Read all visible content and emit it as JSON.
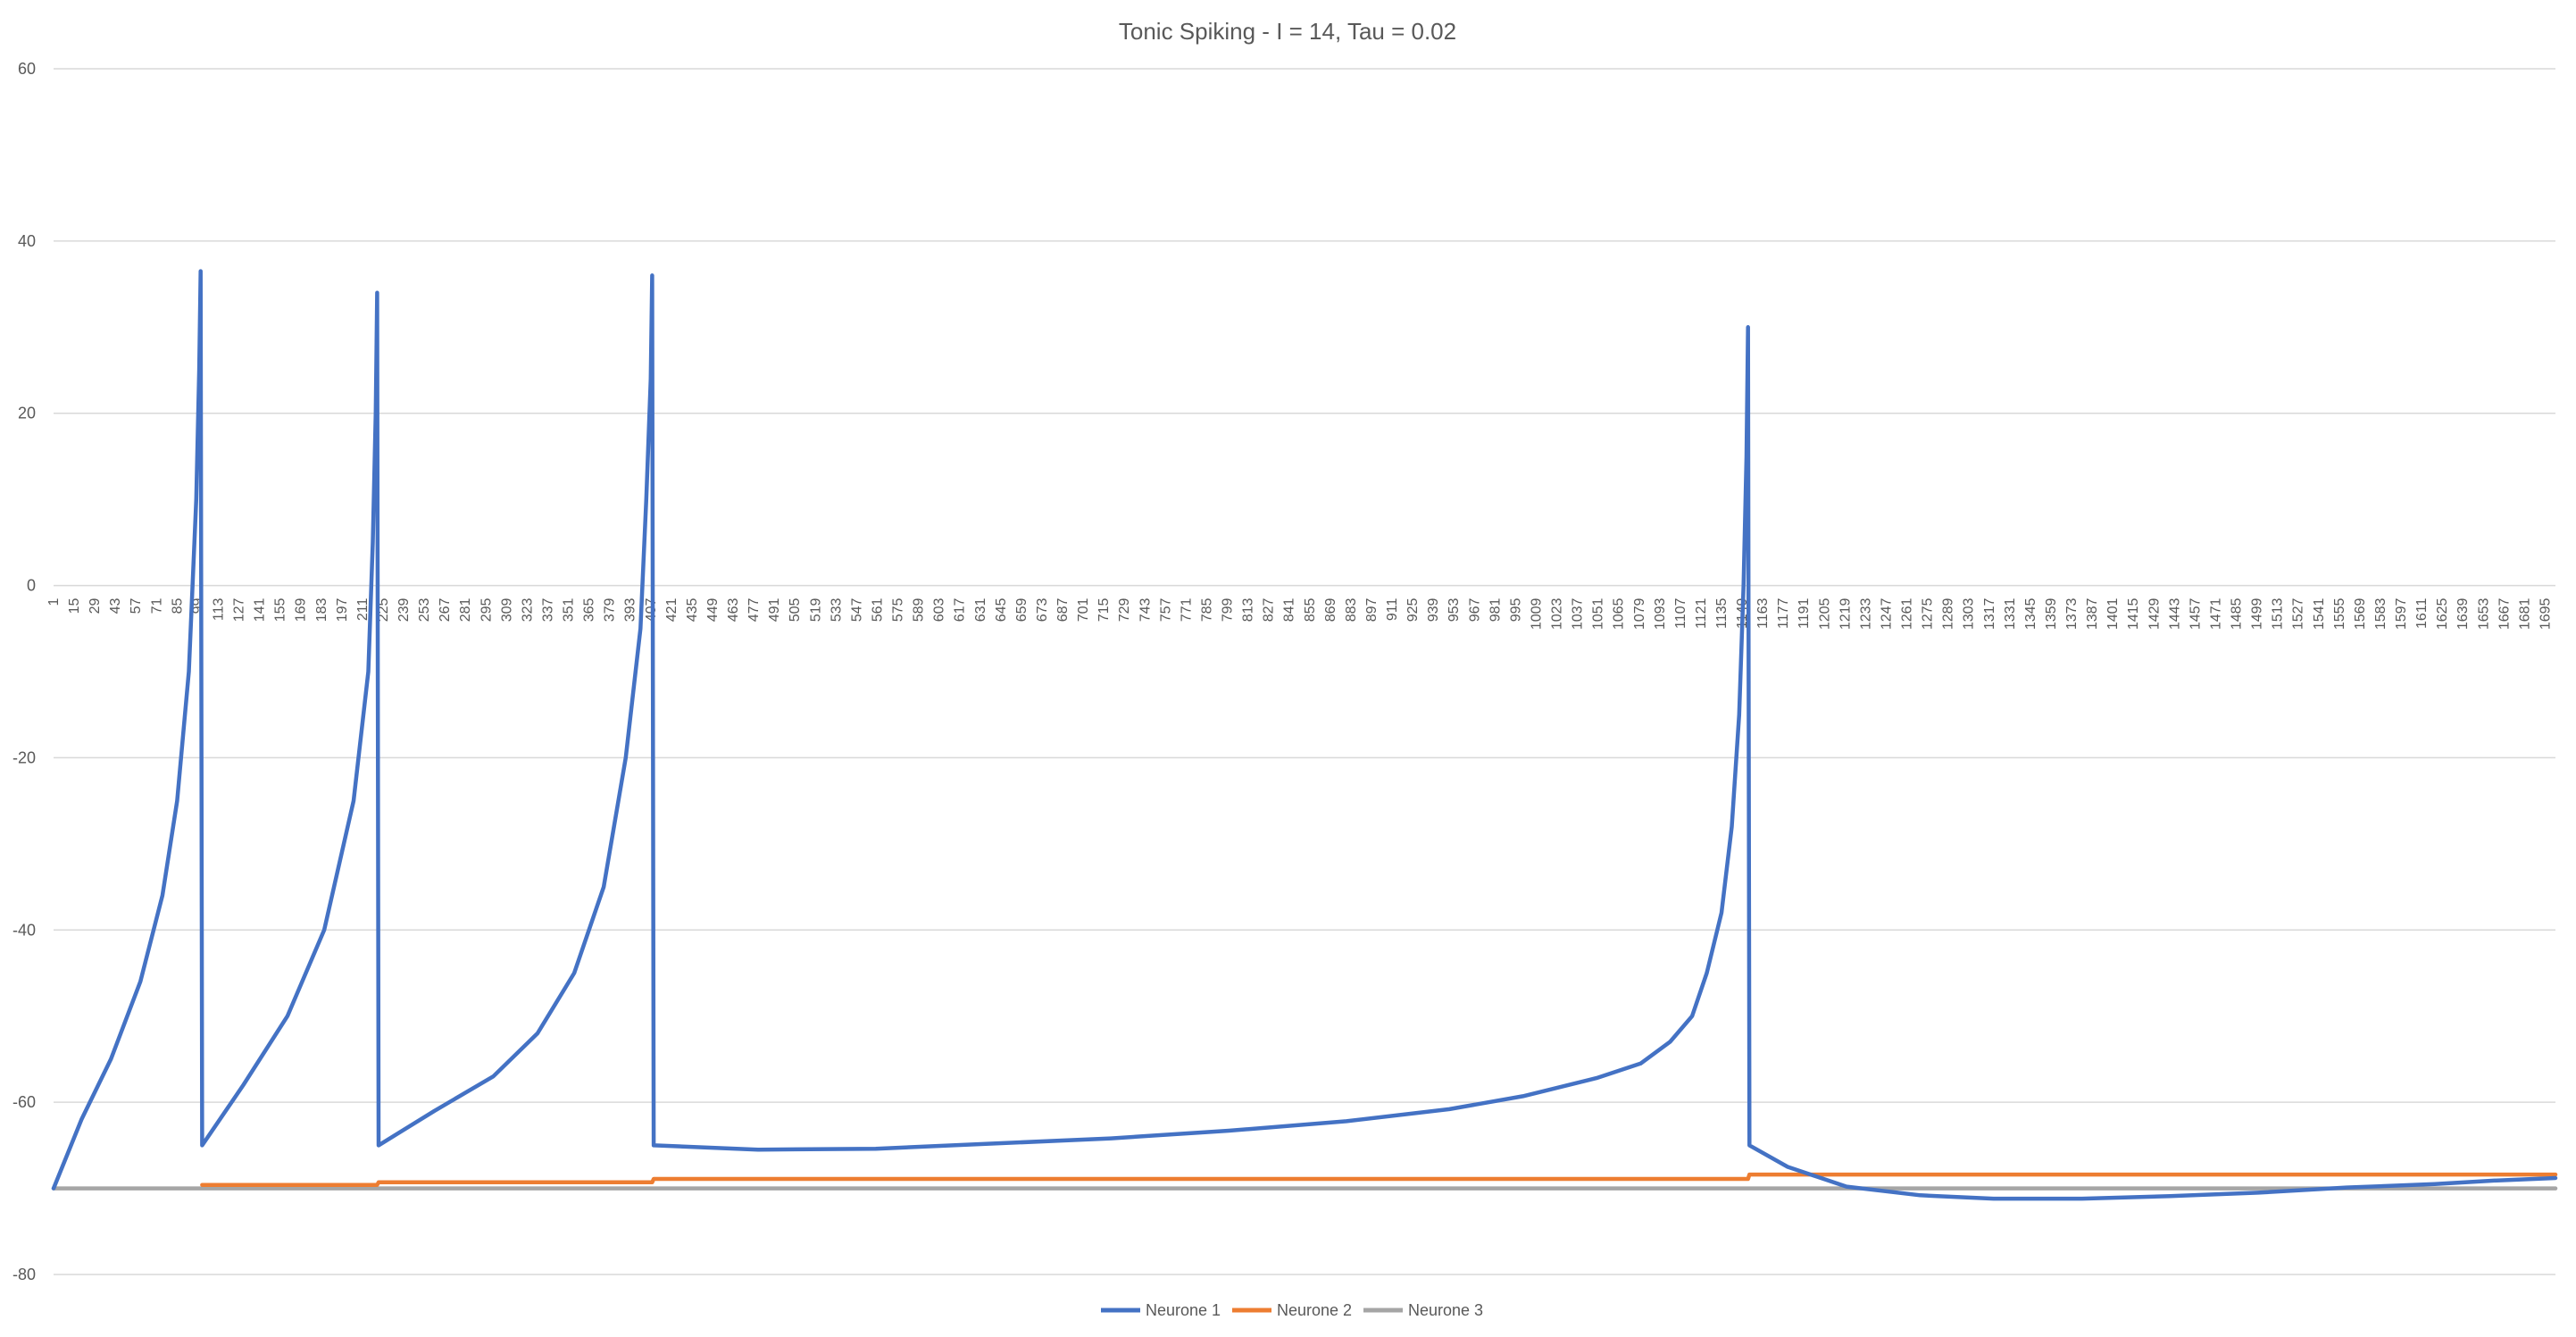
{
  "chart_data": {
    "type": "line",
    "title": "Tonic Spiking - I = 14, Tau = 0.02",
    "xlabel": "",
    "ylabel": "",
    "ylim": [
      -80,
      60
    ],
    "yticks": [
      60,
      40,
      20,
      0,
      -20,
      -40,
      -60,
      -80
    ],
    "xlim": [
      1,
      1702
    ],
    "x_tick_start": 1,
    "x_tick_step": 14,
    "grid": true,
    "legend_position": "bottom",
    "series": [
      {
        "name": "Neurone 1",
        "color": "#4472C4",
        "points": [
          [
            1,
            -70
          ],
          [
            20,
            -62
          ],
          [
            40,
            -55
          ],
          [
            60,
            -46
          ],
          [
            75,
            -36
          ],
          [
            85,
            -25
          ],
          [
            93,
            -10
          ],
          [
            98,
            10
          ],
          [
            100,
            25
          ],
          [
            101,
            36.5
          ],
          [
            102,
            -65
          ],
          [
            130,
            -58
          ],
          [
            160,
            -50
          ],
          [
            185,
            -40
          ],
          [
            205,
            -25
          ],
          [
            215,
            -10
          ],
          [
            218,
            5
          ],
          [
            220,
            20
          ],
          [
            221,
            34
          ],
          [
            222,
            -65
          ],
          [
            260,
            -61
          ],
          [
            300,
            -57
          ],
          [
            330,
            -52
          ],
          [
            355,
            -45
          ],
          [
            375,
            -35
          ],
          [
            390,
            -20
          ],
          [
            400,
            -5
          ],
          [
            404,
            10
          ],
          [
            407,
            24
          ],
          [
            408,
            36
          ],
          [
            409,
            -65
          ],
          [
            480,
            -65.5
          ],
          [
            560,
            -65.4
          ],
          [
            640,
            -64.8
          ],
          [
            720,
            -64.2
          ],
          [
            800,
            -63.3
          ],
          [
            880,
            -62.2
          ],
          [
            950,
            -60.8
          ],
          [
            1000,
            -59.3
          ],
          [
            1050,
            -57.2
          ],
          [
            1080,
            -55.5
          ],
          [
            1100,
            -53
          ],
          [
            1115,
            -50
          ],
          [
            1125,
            -45
          ],
          [
            1135,
            -38
          ],
          [
            1142,
            -28
          ],
          [
            1147,
            -15
          ],
          [
            1150,
            0
          ],
          [
            1152,
            15
          ],
          [
            1153,
            30
          ],
          [
            1154,
            -65
          ],
          [
            1180,
            -67.5
          ],
          [
            1220,
            -69.8
          ],
          [
            1270,
            -70.8
          ],
          [
            1320,
            -71.2
          ],
          [
            1380,
            -71.2
          ],
          [
            1440,
            -70.9
          ],
          [
            1500,
            -70.5
          ],
          [
            1560,
            -69.9
          ],
          [
            1620,
            -69.5
          ],
          [
            1660,
            -69.1
          ],
          [
            1702,
            -68.8
          ]
        ]
      },
      {
        "name": "Neurone 2",
        "color": "#ED7D31",
        "points": [
          [
            102,
            -69.6
          ],
          [
            221,
            -69.6
          ],
          [
            222,
            -69.3
          ],
          [
            408,
            -69.3
          ],
          [
            409,
            -68.9
          ],
          [
            1153,
            -68.9
          ],
          [
            1154,
            -68.4
          ],
          [
            1702,
            -68.4
          ]
        ]
      },
      {
        "name": "Neurone 3",
        "color": "#A5A5A5",
        "points": [
          [
            1,
            -70
          ],
          [
            1702,
            -70
          ]
        ]
      }
    ]
  }
}
